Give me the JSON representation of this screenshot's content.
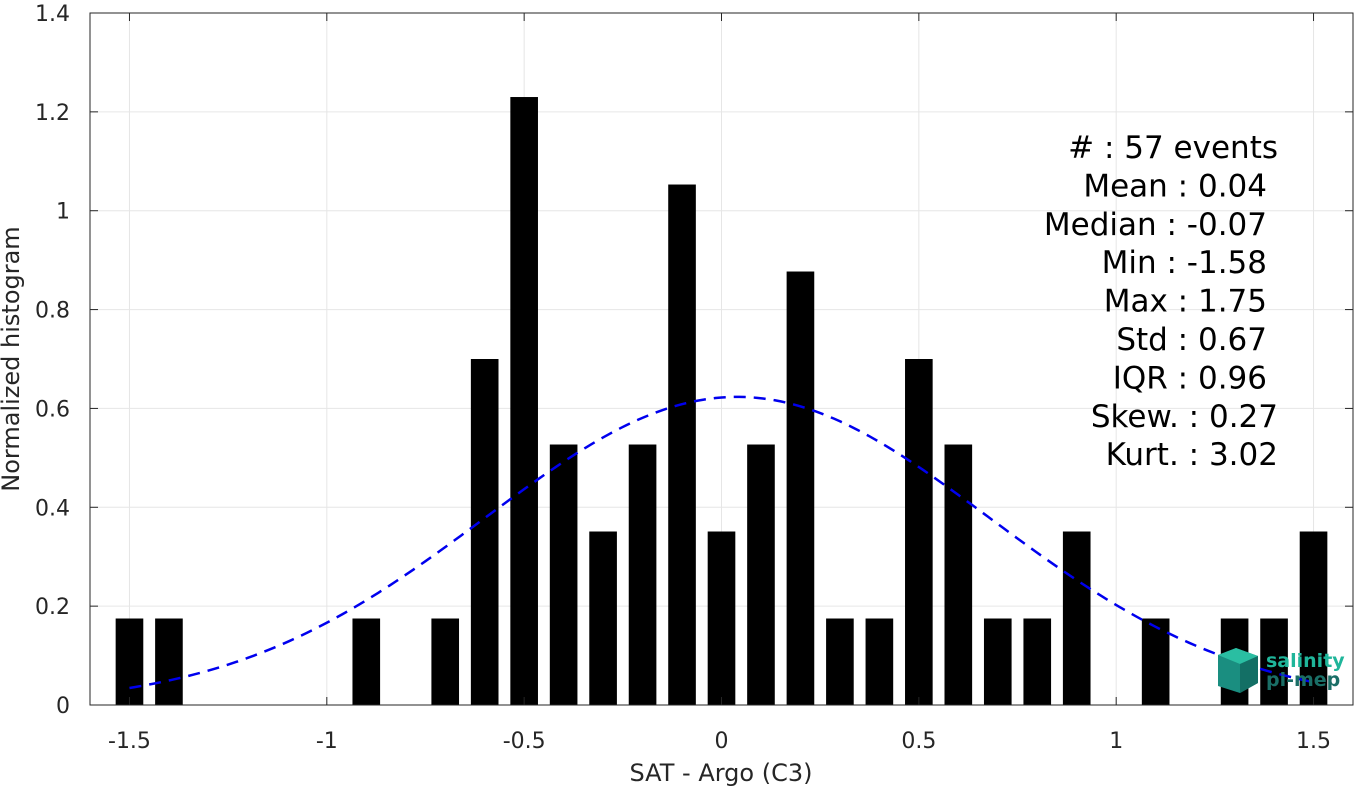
{
  "chart_data": {
    "type": "bar",
    "xlabel": "SAT - Argo (C3)",
    "ylabel": "Normalized histogram",
    "xlim": [
      -1.6,
      1.6
    ],
    "ylim": [
      0,
      1.4
    ],
    "x_ticks": [
      -1.5,
      -1,
      -0.5,
      0,
      0.5,
      1,
      1.5
    ],
    "x_tick_labels": [
      "-1.5",
      "-1",
      "-0.5",
      "0",
      "0.5",
      "1",
      "1.5"
    ],
    "y_ticks": [
      0,
      0.2,
      0.4,
      0.6,
      0.8,
      1,
      1.2,
      1.4
    ],
    "y_tick_labels": [
      "0",
      "0.2",
      "0.4",
      "0.6",
      "0.8",
      "1",
      "1.2",
      "1.4"
    ],
    "grid": true,
    "bar_color": "#000000",
    "bar_width": 0.07,
    "bins": [
      {
        "x": -1.5,
        "y": 0.175
      },
      {
        "x": -1.4,
        "y": 0.175
      },
      {
        "x": -0.9,
        "y": 0.175
      },
      {
        "x": -0.7,
        "y": 0.175
      },
      {
        "x": -0.6,
        "y": 0.7
      },
      {
        "x": -0.5,
        "y": 1.23
      },
      {
        "x": -0.4,
        "y": 0.527
      },
      {
        "x": -0.3,
        "y": 0.351
      },
      {
        "x": -0.2,
        "y": 0.527
      },
      {
        "x": -0.1,
        "y": 1.053
      },
      {
        "x": 0.0,
        "y": 0.351
      },
      {
        "x": 0.1,
        "y": 0.527
      },
      {
        "x": 0.2,
        "y": 0.877
      },
      {
        "x": 0.3,
        "y": 0.175
      },
      {
        "x": 0.4,
        "y": 0.175
      },
      {
        "x": 0.5,
        "y": 0.7
      },
      {
        "x": 0.6,
        "y": 0.527
      },
      {
        "x": 0.7,
        "y": 0.175
      },
      {
        "x": 0.8,
        "y": 0.175
      },
      {
        "x": 0.9,
        "y": 0.351
      },
      {
        "x": 1.1,
        "y": 0.175
      },
      {
        "x": 1.3,
        "y": 0.175
      },
      {
        "x": 1.4,
        "y": 0.175
      },
      {
        "x": 1.5,
        "y": 0.351
      }
    ],
    "fit_curve": {
      "style": "dashed",
      "color": "#0000ee",
      "mean": 0.04,
      "std": 0.64,
      "x_range": [
        -1.5,
        1.5
      ]
    },
    "stats": [
      {
        "text": "#  : 57 events",
        "anchor": "end",
        "col": 1
      },
      {
        "text": "Mean : 0.04",
        "anchor": "end",
        "col": 0
      },
      {
        "text": "Median : -0.07",
        "anchor": "end",
        "col": 0
      },
      {
        "text": "Min : -1.58",
        "anchor": "end",
        "col": 0
      },
      {
        "text": "Max : 1.75",
        "anchor": "end",
        "col": 0
      },
      {
        "text": "Std : 0.67",
        "anchor": "end",
        "col": 0
      },
      {
        "text": "IQR : 0.96",
        "anchor": "end",
        "col": 0
      },
      {
        "text": "Skew. : 0.27",
        "anchor": "end",
        "col": 1
      },
      {
        "text": "Kurt. : 3.02",
        "anchor": "end",
        "col": 1
      }
    ]
  },
  "logo": {
    "line1": "salinity",
    "line2": "pi-mep",
    "color1": "#1fb59a",
    "color2": "#1a6e66"
  }
}
